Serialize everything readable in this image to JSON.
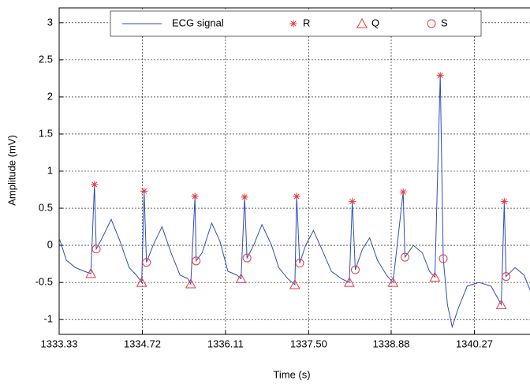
{
  "chart_data": {
    "type": "line",
    "x_label": "Time (s)",
    "y_label": "Amplitude (mV)",
    "xlim": [
      1333.33,
      1341.2
    ],
    "ylim": [
      -1.2,
      3.2
    ],
    "xticks": [
      1333.33,
      1334.72,
      1336.11,
      {
        "value": 1337.5,
        "label": "1337.50"
      },
      1338.88,
      1340.27
    ],
    "yticks": [
      -1,
      -0.5,
      0,
      0.5,
      1,
      1.5,
      2,
      2.5,
      3
    ],
    "grid": true,
    "legend": "top",
    "series": [
      {
        "name": "ECG signal",
        "color": "#2f4fb5",
        "x": [
          1333.33,
          1333.45,
          1333.6,
          1333.75,
          1333.86,
          1333.92,
          1333.95,
          1334.05,
          1334.2,
          1334.35,
          1334.5,
          1334.62,
          1334.71,
          1334.75,
          1334.79,
          1334.9,
          1335.05,
          1335.2,
          1335.35,
          1335.48,
          1335.53,
          1335.6,
          1335.62,
          1335.72,
          1335.88,
          1336.02,
          1336.15,
          1336.3,
          1336.37,
          1336.43,
          1336.47,
          1336.58,
          1336.72,
          1336.88,
          1337.0,
          1337.15,
          1337.27,
          1337.3,
          1337.35,
          1337.45,
          1337.58,
          1337.72,
          1337.88,
          1338.05,
          1338.18,
          1338.23,
          1338.28,
          1338.4,
          1338.52,
          1338.65,
          1338.8,
          1338.91,
          1339.08,
          1339.11,
          1339.25,
          1339.4,
          1339.52,
          1339.61,
          1339.7,
          1339.75,
          1339.82,
          1339.9,
          1340.0,
          1340.15,
          1340.35,
          1340.55,
          1340.72,
          1340.77,
          1340.8,
          1340.95,
          1341.1,
          1341.2
        ],
        "values": [
          0.1,
          -0.2,
          -0.3,
          -0.35,
          -0.38,
          0.82,
          -0.05,
          0.1,
          0.35,
          0.05,
          -0.3,
          -0.4,
          -0.5,
          0.73,
          -0.23,
          0.0,
          0.25,
          -0.1,
          -0.4,
          -0.45,
          -0.52,
          0.66,
          -0.21,
          -0.1,
          0.3,
          0.05,
          -0.35,
          -0.4,
          -0.45,
          0.65,
          -0.17,
          0.0,
          0.28,
          0.0,
          -0.3,
          -0.45,
          -0.53,
          0.66,
          -0.24,
          0.0,
          0.2,
          -0.05,
          -0.35,
          -0.45,
          -0.5,
          0.59,
          -0.33,
          -0.05,
          0.1,
          -0.2,
          -0.4,
          -0.5,
          0.72,
          -0.16,
          0.0,
          -0.1,
          -0.35,
          -0.43,
          2.29,
          -0.18,
          -0.8,
          -1.1,
          -0.85,
          -0.55,
          -0.5,
          -0.55,
          -0.8,
          0.59,
          -0.42,
          -0.3,
          -0.4,
          -0.6
        ]
      },
      {
        "name": "R",
        "color": "#e8383d",
        "marker": "star",
        "x": [
          1333.92,
          1334.75,
          1335.6,
          1336.43,
          1337.3,
          1338.23,
          1339.08,
          1339.7,
          1340.77
        ],
        "values": [
          0.82,
          0.73,
          0.66,
          0.65,
          0.66,
          0.59,
          0.72,
          2.29,
          0.59
        ]
      },
      {
        "name": "Q",
        "color": "#e8383d",
        "marker": "triangle",
        "x": [
          1333.86,
          1334.71,
          1335.53,
          1336.37,
          1337.27,
          1338.18,
          1338.91,
          1339.61,
          1340.72
        ],
        "values": [
          -0.38,
          -0.5,
          -0.52,
          -0.45,
          -0.53,
          -0.5,
          -0.5,
          -0.43,
          -0.8
        ]
      },
      {
        "name": "S",
        "color": "#e8383d",
        "marker": "circle",
        "x": [
          1333.95,
          1334.79,
          1335.62,
          1336.47,
          1337.35,
          1338.28,
          1339.11,
          1339.75,
          1340.8
        ],
        "values": [
          -0.05,
          -0.23,
          -0.21,
          -0.17,
          -0.24,
          -0.33,
          -0.16,
          -0.18,
          -0.42
        ]
      }
    ]
  }
}
